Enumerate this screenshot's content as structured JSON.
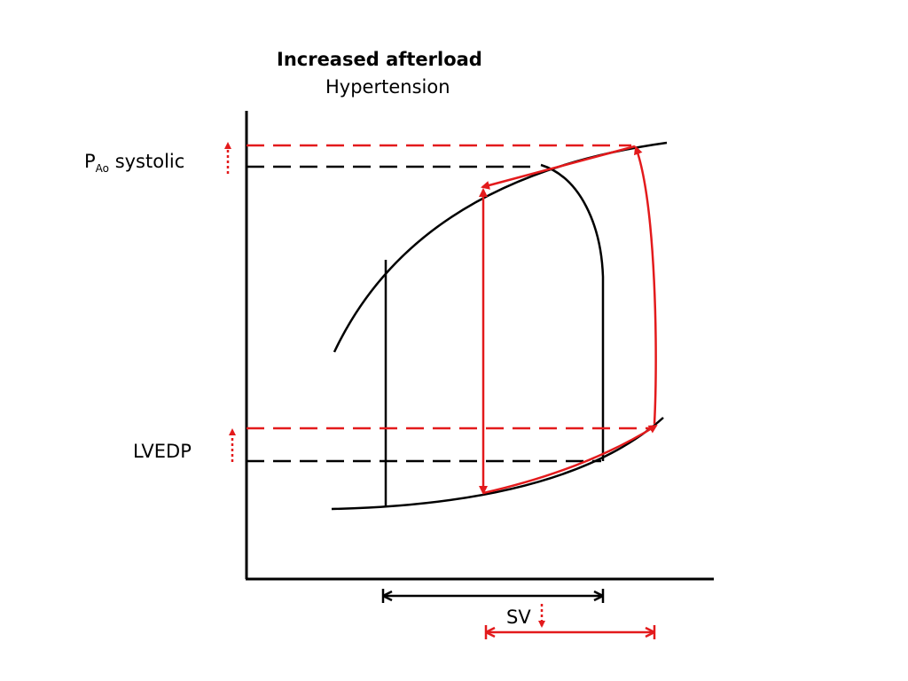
{
  "title": "Increased afterload",
  "subtitle": "Hypertension",
  "labels": {
    "pao_main": "P",
    "pao_sub": "Ao",
    "pao_rest": " systolic",
    "lvedp": "LVEDP",
    "sv": "SV"
  },
  "colors": {
    "baseline": "#000000",
    "increased_afterload": "#e31a1c"
  }
}
